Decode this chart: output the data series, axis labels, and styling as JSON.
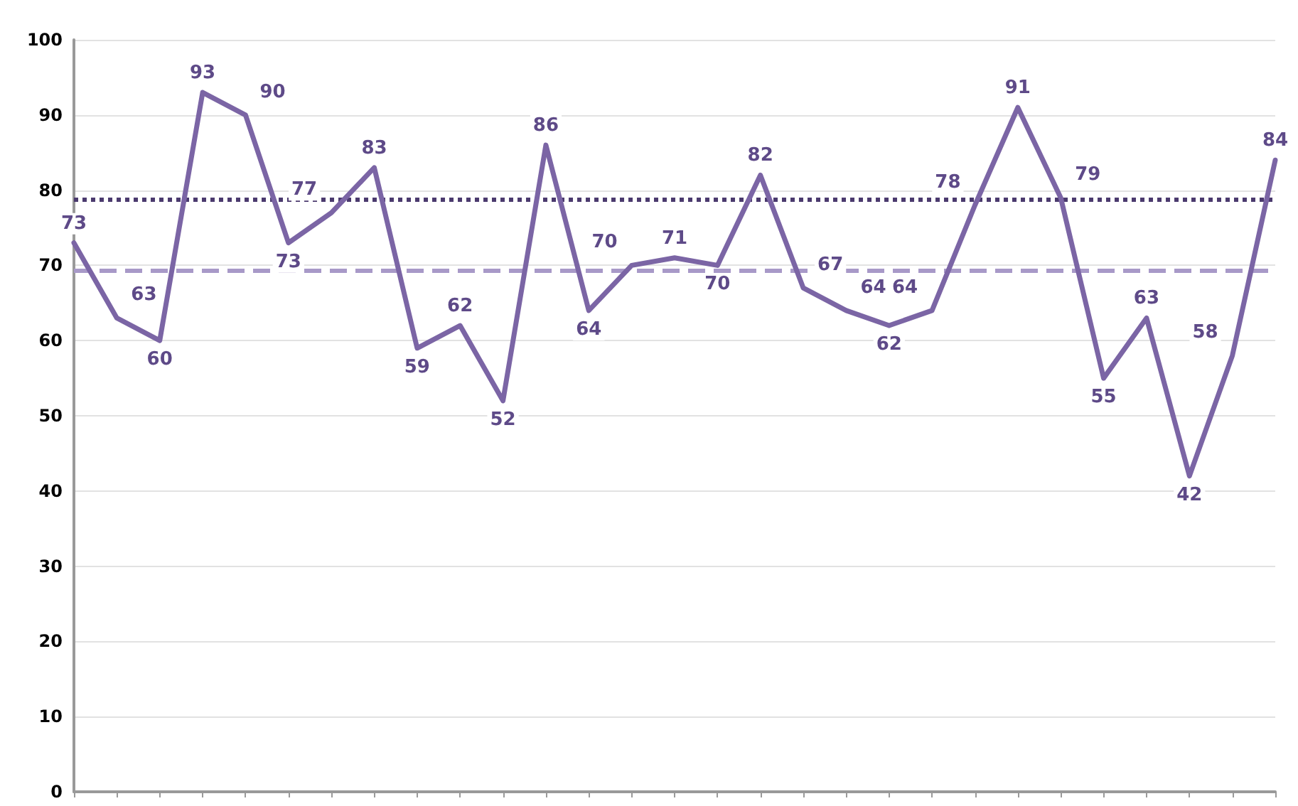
{
  "chart_data": {
    "type": "line",
    "categories": [
      null,
      null,
      null,
      null,
      null,
      null,
      null,
      null,
      null,
      null,
      null,
      null,
      null,
      null,
      null,
      null,
      null,
      null,
      null,
      null,
      null,
      null,
      null,
      null,
      null,
      null,
      null,
      null,
      null
    ],
    "series": [
      {
        "color": "#7b65a5",
        "values": [
          73,
          63,
          60,
          93,
          90,
          73,
          77,
          83,
          59,
          62,
          52,
          86,
          64,
          70,
          71,
          70,
          82,
          67,
          64,
          62,
          64,
          78,
          91,
          79,
          55,
          63,
          42,
          58,
          84
        ]
      }
    ],
    "ylim": [
      0,
      100
    ],
    "yticks": [
      0,
      10,
      20,
      30,
      40,
      50,
      60,
      70,
      80,
      90,
      100
    ],
    "grid": "y",
    "tick_labels": "y",
    "data_labels": true,
    "marker": "none",
    "line_style": "solid",
    "ref_lines": [
      {
        "axis": "y",
        "value": 78.7,
        "color": "#4b3a6e",
        "line_style": "dotted"
      },
      {
        "axis": "y",
        "value": 69.3,
        "color": "#a899c8",
        "line_style": "dashed"
      }
    ]
  }
}
